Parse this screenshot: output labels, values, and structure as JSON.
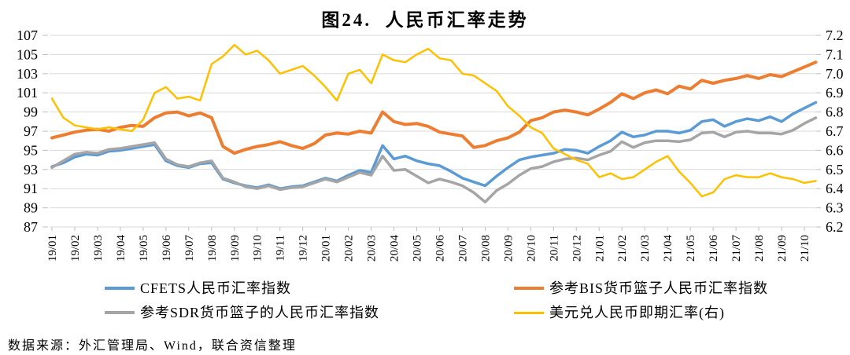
{
  "title": "图24.  人民币汇率走势",
  "source": "数据来源：外汇管理局、Wind，联合资信整理",
  "colors": {
    "cfets_blue": "#5B9BD5",
    "bis_orange": "#ED7D31",
    "sdr_gray": "#A5A5A5",
    "usd_yellow": "#FFC000",
    "gridline": "#D9D9D9",
    "tick": "#BFBFBF",
    "text": "#000000"
  },
  "chart_data": {
    "type": "line",
    "title": "图24.  人民币汇率走势",
    "xlabel": "",
    "ylabel_left": "",
    "ylabel_right": "",
    "grid": true,
    "legend_position": "bottom",
    "left_axis": {
      "min": 87,
      "max": 107,
      "step": 2,
      "tick_labels": [
        "87",
        "89",
        "91",
        "93",
        "95",
        "97",
        "99",
        "101",
        "103",
        "105",
        "107"
      ]
    },
    "right_axis": {
      "min": 6.2,
      "max": 7.2,
      "step": 0.1,
      "tick_labels": [
        "6.2",
        "6.3",
        "6.4",
        "6.5",
        "6.6",
        "6.7",
        "6.8",
        "6.9",
        "7.0",
        "7.1",
        "7.2"
      ]
    },
    "x_labels": [
      "19/01",
      "19/02",
      "19/03",
      "19/04",
      "19/05",
      "19/06",
      "19/07",
      "19/08",
      "19/09",
      "19/10",
      "19/11",
      "19/12",
      "20/01",
      "20/02",
      "20/03",
      "20/04",
      "20/05",
      "20/06",
      "20/07",
      "20/08",
      "20/09",
      "20/10",
      "20/11",
      "20/12",
      "21/01",
      "21/02",
      "21/03",
      "21/04",
      "21/05",
      "21/06",
      "21/07",
      "21/08",
      "21/09",
      "21/10"
    ],
    "points_per_month": 2,
    "series": [
      {
        "name": "CFETS人民币汇率指数",
        "color": "#5B9BD5",
        "axis": "left",
        "values": [
          93.3,
          93.7,
          94.3,
          94.6,
          94.5,
          94.9,
          95.0,
          95.2,
          95.4,
          95.6,
          93.9,
          93.4,
          93.2,
          93.6,
          93.7,
          92.0,
          91.6,
          91.3,
          91.1,
          91.4,
          91.0,
          91.2,
          91.3,
          91.7,
          92.1,
          91.8,
          92.4,
          92.9,
          92.7,
          95.5,
          94.1,
          94.4,
          93.9,
          93.6,
          93.4,
          92.8,
          92.1,
          91.7,
          91.3,
          92.3,
          93.2,
          94.0,
          94.3,
          94.5,
          94.7,
          95.1,
          95.0,
          94.7,
          95.4,
          96.0,
          96.9,
          96.4,
          96.6,
          97.0,
          97.0,
          96.8,
          97.1,
          98.0,
          98.2,
          97.5,
          98.0,
          98.3,
          98.1,
          98.5,
          98.0,
          98.8,
          99.4,
          100.0
        ]
      },
      {
        "name": "参考BIS货币篮子人民币汇率指数",
        "color": "#ED7D31",
        "axis": "left",
        "values": [
          96.3,
          96.6,
          96.9,
          97.1,
          97.2,
          97.0,
          97.4,
          97.6,
          97.5,
          98.4,
          98.9,
          99.0,
          98.6,
          98.9,
          98.4,
          95.4,
          94.7,
          95.1,
          95.4,
          95.6,
          95.9,
          95.5,
          95.2,
          95.7,
          96.6,
          96.8,
          96.7,
          97.0,
          96.8,
          99.0,
          98.0,
          97.7,
          97.8,
          97.5,
          96.9,
          96.7,
          96.5,
          95.3,
          95.5,
          96.0,
          96.3,
          96.9,
          98.1,
          98.4,
          99.0,
          99.2,
          99.0,
          98.7,
          99.3,
          100.0,
          100.9,
          100.4,
          101.0,
          101.3,
          100.9,
          101.7,
          101.4,
          102.3,
          102.0,
          102.3,
          102.5,
          102.8,
          102.5,
          102.9,
          102.7,
          103.2,
          103.7,
          104.2
        ]
      },
      {
        "name": "参考SDR货币篮子的人民币汇率指数",
        "color": "#A5A5A5",
        "axis": "left",
        "values": [
          93.2,
          93.9,
          94.6,
          94.8,
          94.7,
          95.1,
          95.2,
          95.4,
          95.6,
          95.8,
          94.1,
          93.5,
          93.3,
          93.7,
          93.9,
          92.1,
          91.7,
          91.2,
          91.0,
          91.3,
          90.9,
          91.1,
          91.2,
          91.6,
          92.0,
          91.7,
          92.2,
          92.7,
          92.4,
          94.4,
          92.9,
          93.0,
          92.3,
          91.6,
          92.0,
          91.7,
          91.3,
          90.6,
          89.6,
          90.8,
          91.5,
          92.4,
          93.1,
          93.3,
          93.8,
          94.1,
          94.2,
          94.0,
          94.5,
          94.9,
          95.9,
          95.3,
          95.8,
          96.0,
          96.0,
          95.9,
          96.1,
          96.8,
          96.9,
          96.4,
          96.9,
          97.0,
          96.8,
          96.8,
          96.7,
          97.1,
          97.8,
          98.4
        ]
      },
      {
        "name": "美元兑人民币即期汇率(右)",
        "color": "#FFC000",
        "axis": "right",
        "values": [
          6.87,
          6.77,
          6.73,
          6.72,
          6.71,
          6.72,
          6.71,
          6.7,
          6.76,
          6.9,
          6.93,
          6.87,
          6.88,
          6.86,
          7.05,
          7.09,
          7.15,
          7.1,
          7.12,
          7.07,
          7.0,
          7.02,
          7.04,
          6.99,
          6.93,
          6.86,
          7.0,
          7.02,
          6.95,
          7.1,
          7.07,
          7.06,
          7.1,
          7.13,
          7.08,
          7.07,
          7.0,
          6.99,
          6.95,
          6.91,
          6.83,
          6.78,
          6.72,
          6.69,
          6.61,
          6.58,
          6.55,
          6.53,
          6.46,
          6.48,
          6.45,
          6.46,
          6.5,
          6.54,
          6.57,
          6.49,
          6.43,
          6.36,
          6.38,
          6.45,
          6.47,
          6.46,
          6.46,
          6.48,
          6.46,
          6.45,
          6.43,
          6.44
        ]
      }
    ]
  },
  "legend": {
    "items": [
      {
        "label": "CFETS人民币汇率指数",
        "series_index": 0
      },
      {
        "label": "参考BIS货币篮子人民币汇率指数",
        "series_index": 1
      },
      {
        "label": "参考SDR货币篮子的人民币汇率指数",
        "series_index": 2
      },
      {
        "label": "美元兑人民币即期汇率(右)",
        "series_index": 3
      }
    ]
  }
}
